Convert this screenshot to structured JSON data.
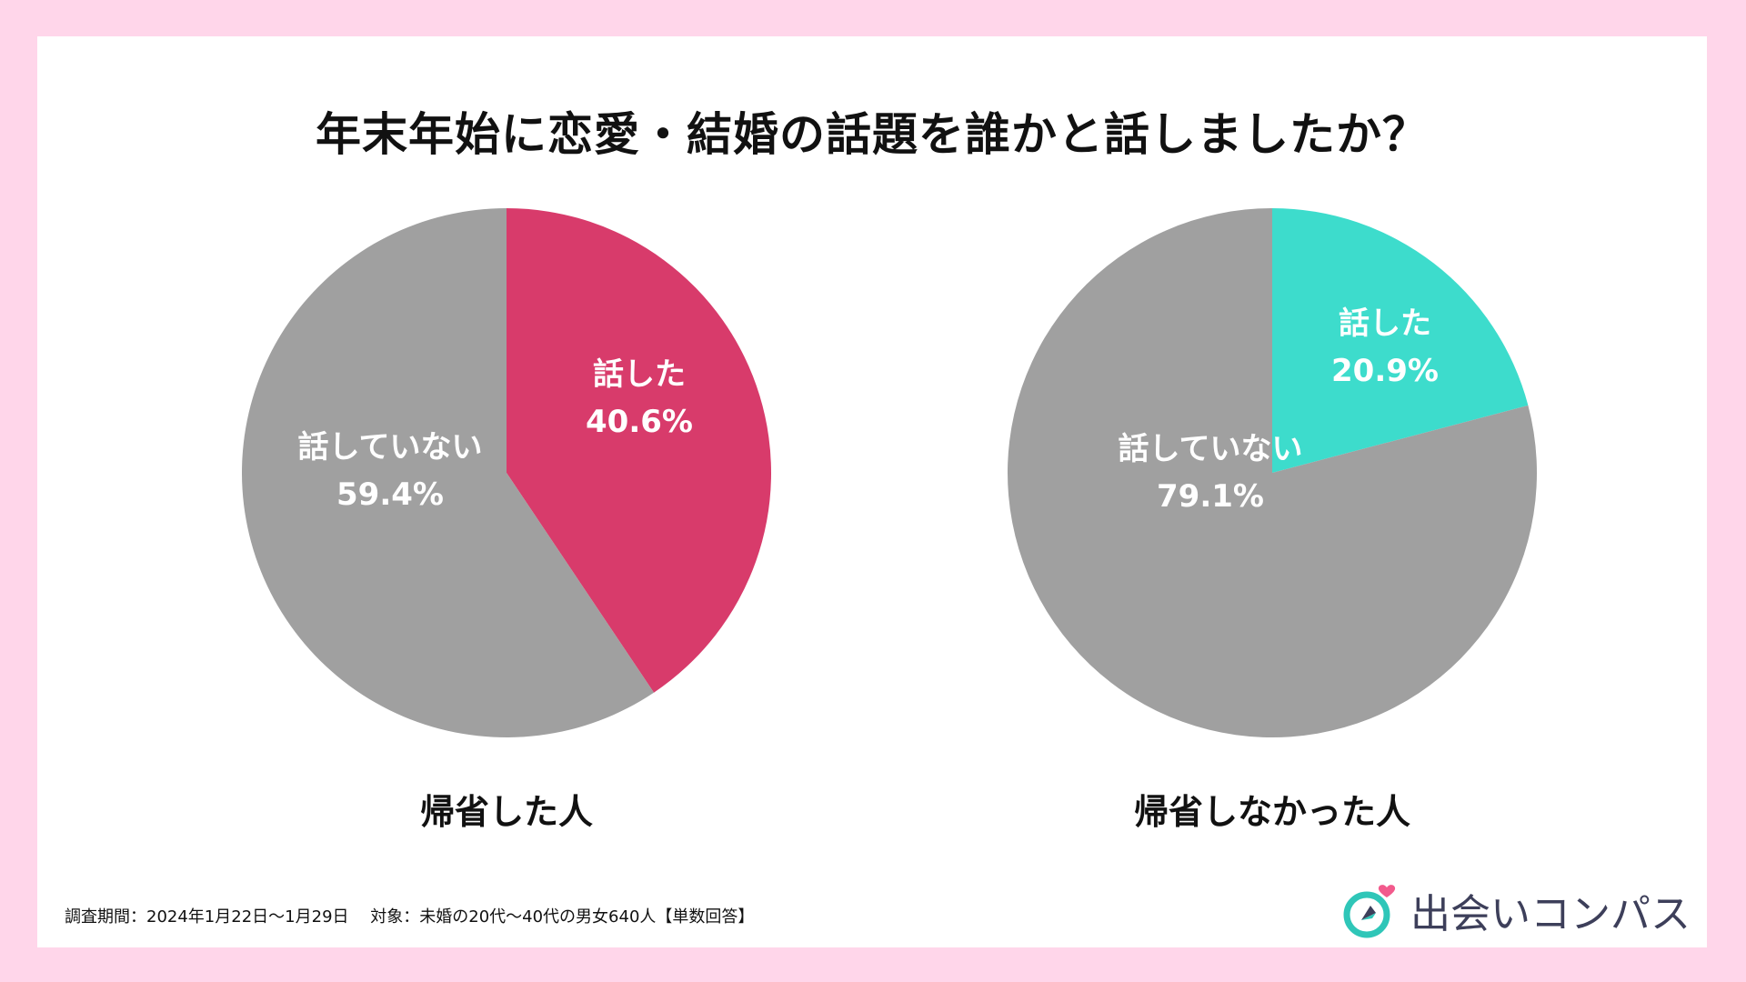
{
  "title": "年末年始に恋愛・結婚の話題を誰かと話しましたか？",
  "colors": {
    "background": "#ffd6ea",
    "talked_left": "#d83b6b",
    "talked_right": "#3ddccc",
    "not_talked": "#a0a0a0",
    "logo_text": "#3d3f5a",
    "logo_heart": "#f25a8c",
    "logo_ring": "#2fc6b8"
  },
  "chart_data": [
    {
      "type": "pie",
      "title": "帰省した人",
      "slices": [
        {
          "label": "話した",
          "value": 40.6,
          "value_label": "40.6%"
        },
        {
          "label": "話していない",
          "value": 59.4,
          "value_label": "59.4%"
        }
      ]
    },
    {
      "type": "pie",
      "title": "帰省しなかった人",
      "slices": [
        {
          "label": "話した",
          "value": 20.9,
          "value_label": "20.9%"
        },
        {
          "label": "話していない",
          "value": 79.1,
          "value_label": "79.1%"
        }
      ]
    }
  ],
  "footnote": "調査期間：2024年1月22日〜1月29日　 対象：未婚の20代〜40代の男女640人【単数回答】",
  "logo": {
    "text": "出会いコンパス",
    "icon": "compass-heart-icon"
  }
}
